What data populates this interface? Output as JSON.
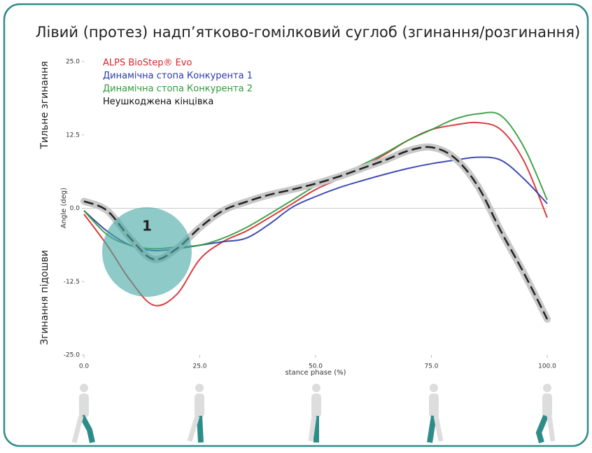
{
  "chart_data": {
    "type": "line",
    "title": "Лівий (протез) надп’ятково-гомілковий суглоб (згинання/розгинання)",
    "x_label": "stance phase (%)",
    "y_label": "Angle (deg)",
    "upper_label": "Тильне згинання",
    "lower_label": "Згинання підошви",
    "annotation": "1",
    "x": [
      0,
      5,
      10,
      15,
      20,
      25,
      30,
      35,
      40,
      45,
      50,
      55,
      60,
      65,
      70,
      75,
      80,
      85,
      90,
      95,
      100
    ],
    "xlim": [
      0,
      100
    ],
    "ylim": [
      -25,
      25
    ],
    "xticks": [
      {
        "value": 0,
        "label": "0.0"
      },
      {
        "value": 25,
        "label": "25.0"
      },
      {
        "value": 50,
        "label": "50.0"
      },
      {
        "value": 75,
        "label": "75.0"
      },
      {
        "value": 100,
        "label": "100.0"
      }
    ],
    "yticks": [
      {
        "value": 25,
        "label": "25.0"
      },
      {
        "value": 12.5,
        "label": "12.5"
      },
      {
        "value": 0,
        "label": "0.0"
      },
      {
        "value": -12.5,
        "label": "-12.5"
      },
      {
        "value": -25,
        "label": "-25.0"
      }
    ],
    "series": [
      {
        "name": "ALPS BioStep® Evo",
        "color": "#d9262c",
        "values": [
          -1,
          -6.3,
          -12.3,
          -16.5,
          -14.7,
          -8.7,
          -5.7,
          -3.9,
          -1.6,
          0.8,
          3.2,
          5,
          7,
          9.2,
          11.6,
          13.4,
          14.2,
          14.6,
          13.4,
          8,
          -1.6
        ]
      },
      {
        "name": "Динамічна стопа Конкурента 1",
        "color": "#2b3aa8",
        "values": [
          -0.4,
          -3.9,
          -6.3,
          -7.2,
          -6.9,
          -6.3,
          -5.7,
          -5.1,
          -2.7,
          0.2,
          2,
          3.5,
          4.7,
          5.8,
          6.8,
          7.6,
          8.2,
          8.7,
          8.2,
          5,
          0.8
        ]
      },
      {
        "name": "Динамічна стопа Конкурента 2",
        "color": "#2e9b3a",
        "values": [
          -0.4,
          -4.5,
          -6.3,
          -6.9,
          -6.6,
          -6.3,
          -5.1,
          -3.3,
          -1,
          1.4,
          3.8,
          5.6,
          7.4,
          9.4,
          11.6,
          13.4,
          15.2,
          16.1,
          15.8,
          10.4,
          1.4
        ]
      },
      {
        "name": "Неушкоджена кінцівка",
        "color": "#111111",
        "dashed": true,
        "values": [
          1.2,
          -0.4,
          -5.1,
          -8.7,
          -6.9,
          -3.3,
          -0.4,
          1.1,
          2.3,
          3.2,
          4.2,
          5.4,
          6.8,
          8.2,
          9.8,
          10.4,
          8.6,
          3.8,
          -3.9,
          -11.1,
          -18.9
        ]
      }
    ]
  }
}
